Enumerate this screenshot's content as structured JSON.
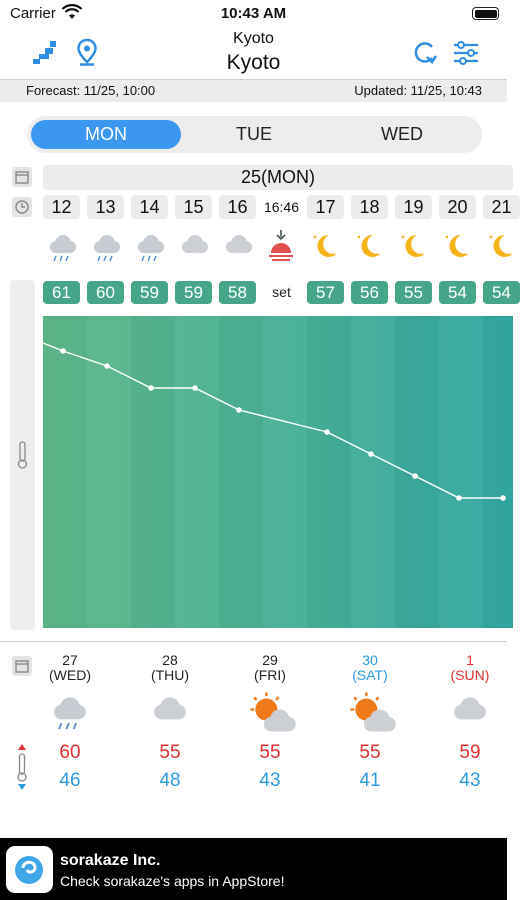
{
  "status_bar": {
    "carrier": "Carrier",
    "time": "10:43 AM"
  },
  "header": {
    "subtitle": "Kyoto",
    "title": "Kyoto"
  },
  "info": {
    "forecast": "Forecast: 11/25, 10:00",
    "updated": "Updated: 11/25, 10:43"
  },
  "tabs": [
    {
      "label": "MON",
      "active": true
    },
    {
      "label": "TUE"
    },
    {
      "label": "WED"
    }
  ],
  "date_band": "25(MON)",
  "hours": [
    "12",
    "13",
    "14",
    "15",
    "16",
    "16:46",
    "17",
    "18",
    "19",
    "20",
    "21"
  ],
  "hourly_icons": [
    "rain-cloud-icon",
    "rain-cloud-icon",
    "rain-cloud-icon",
    "cloud-icon",
    "cloud-icon",
    "sunset-icon",
    "moon-icon",
    "moon-icon",
    "moon-icon",
    "moon-icon",
    "moon-icon"
  ],
  "hourly_temps": [
    "61",
    "60",
    "59",
    "59",
    "58",
    "set",
    "57",
    "56",
    "55",
    "54",
    "54"
  ],
  "chart_data": {
    "type": "line",
    "x": [
      "12",
      "13",
      "14",
      "15",
      "16",
      "17",
      "18",
      "19",
      "20",
      "21"
    ],
    "series": [
      {
        "values": [
          61,
          60,
          59,
          59,
          58,
          57,
          56,
          55,
          54,
          54
        ]
      }
    ]
  },
  "daily": [
    {
      "day": "27",
      "weekday": "(WED)",
      "icon": "rain-cloud-icon",
      "high": "60",
      "low": "46",
      "color": "#222222"
    },
    {
      "day": "28",
      "weekday": "(THU)",
      "icon": "cloud-icon",
      "high": "55",
      "low": "48",
      "color": "#222222"
    },
    {
      "day": "29",
      "weekday": "(FRI)",
      "icon": "sun-cloud-icon",
      "high": "55",
      "low": "43",
      "color": "#222222"
    },
    {
      "day": "30",
      "weekday": "(SAT)",
      "icon": "sun-cloud-icon",
      "high": "55",
      "low": "41",
      "color": "#2c9be0"
    },
    {
      "day": "1",
      "weekday": "(SUN)",
      "icon": "cloud-icon",
      "high": "59",
      "low": "43",
      "color": "#e02f2f"
    }
  ],
  "ad": {
    "title": "sorakaze Inc.",
    "subtitle": "Check sorakaze's apps in AppStore!"
  },
  "colors": {
    "accent": "#3b97f0",
    "temp_box": "#47a68a",
    "high": "#e02f2f",
    "low": "#2c9be0"
  }
}
